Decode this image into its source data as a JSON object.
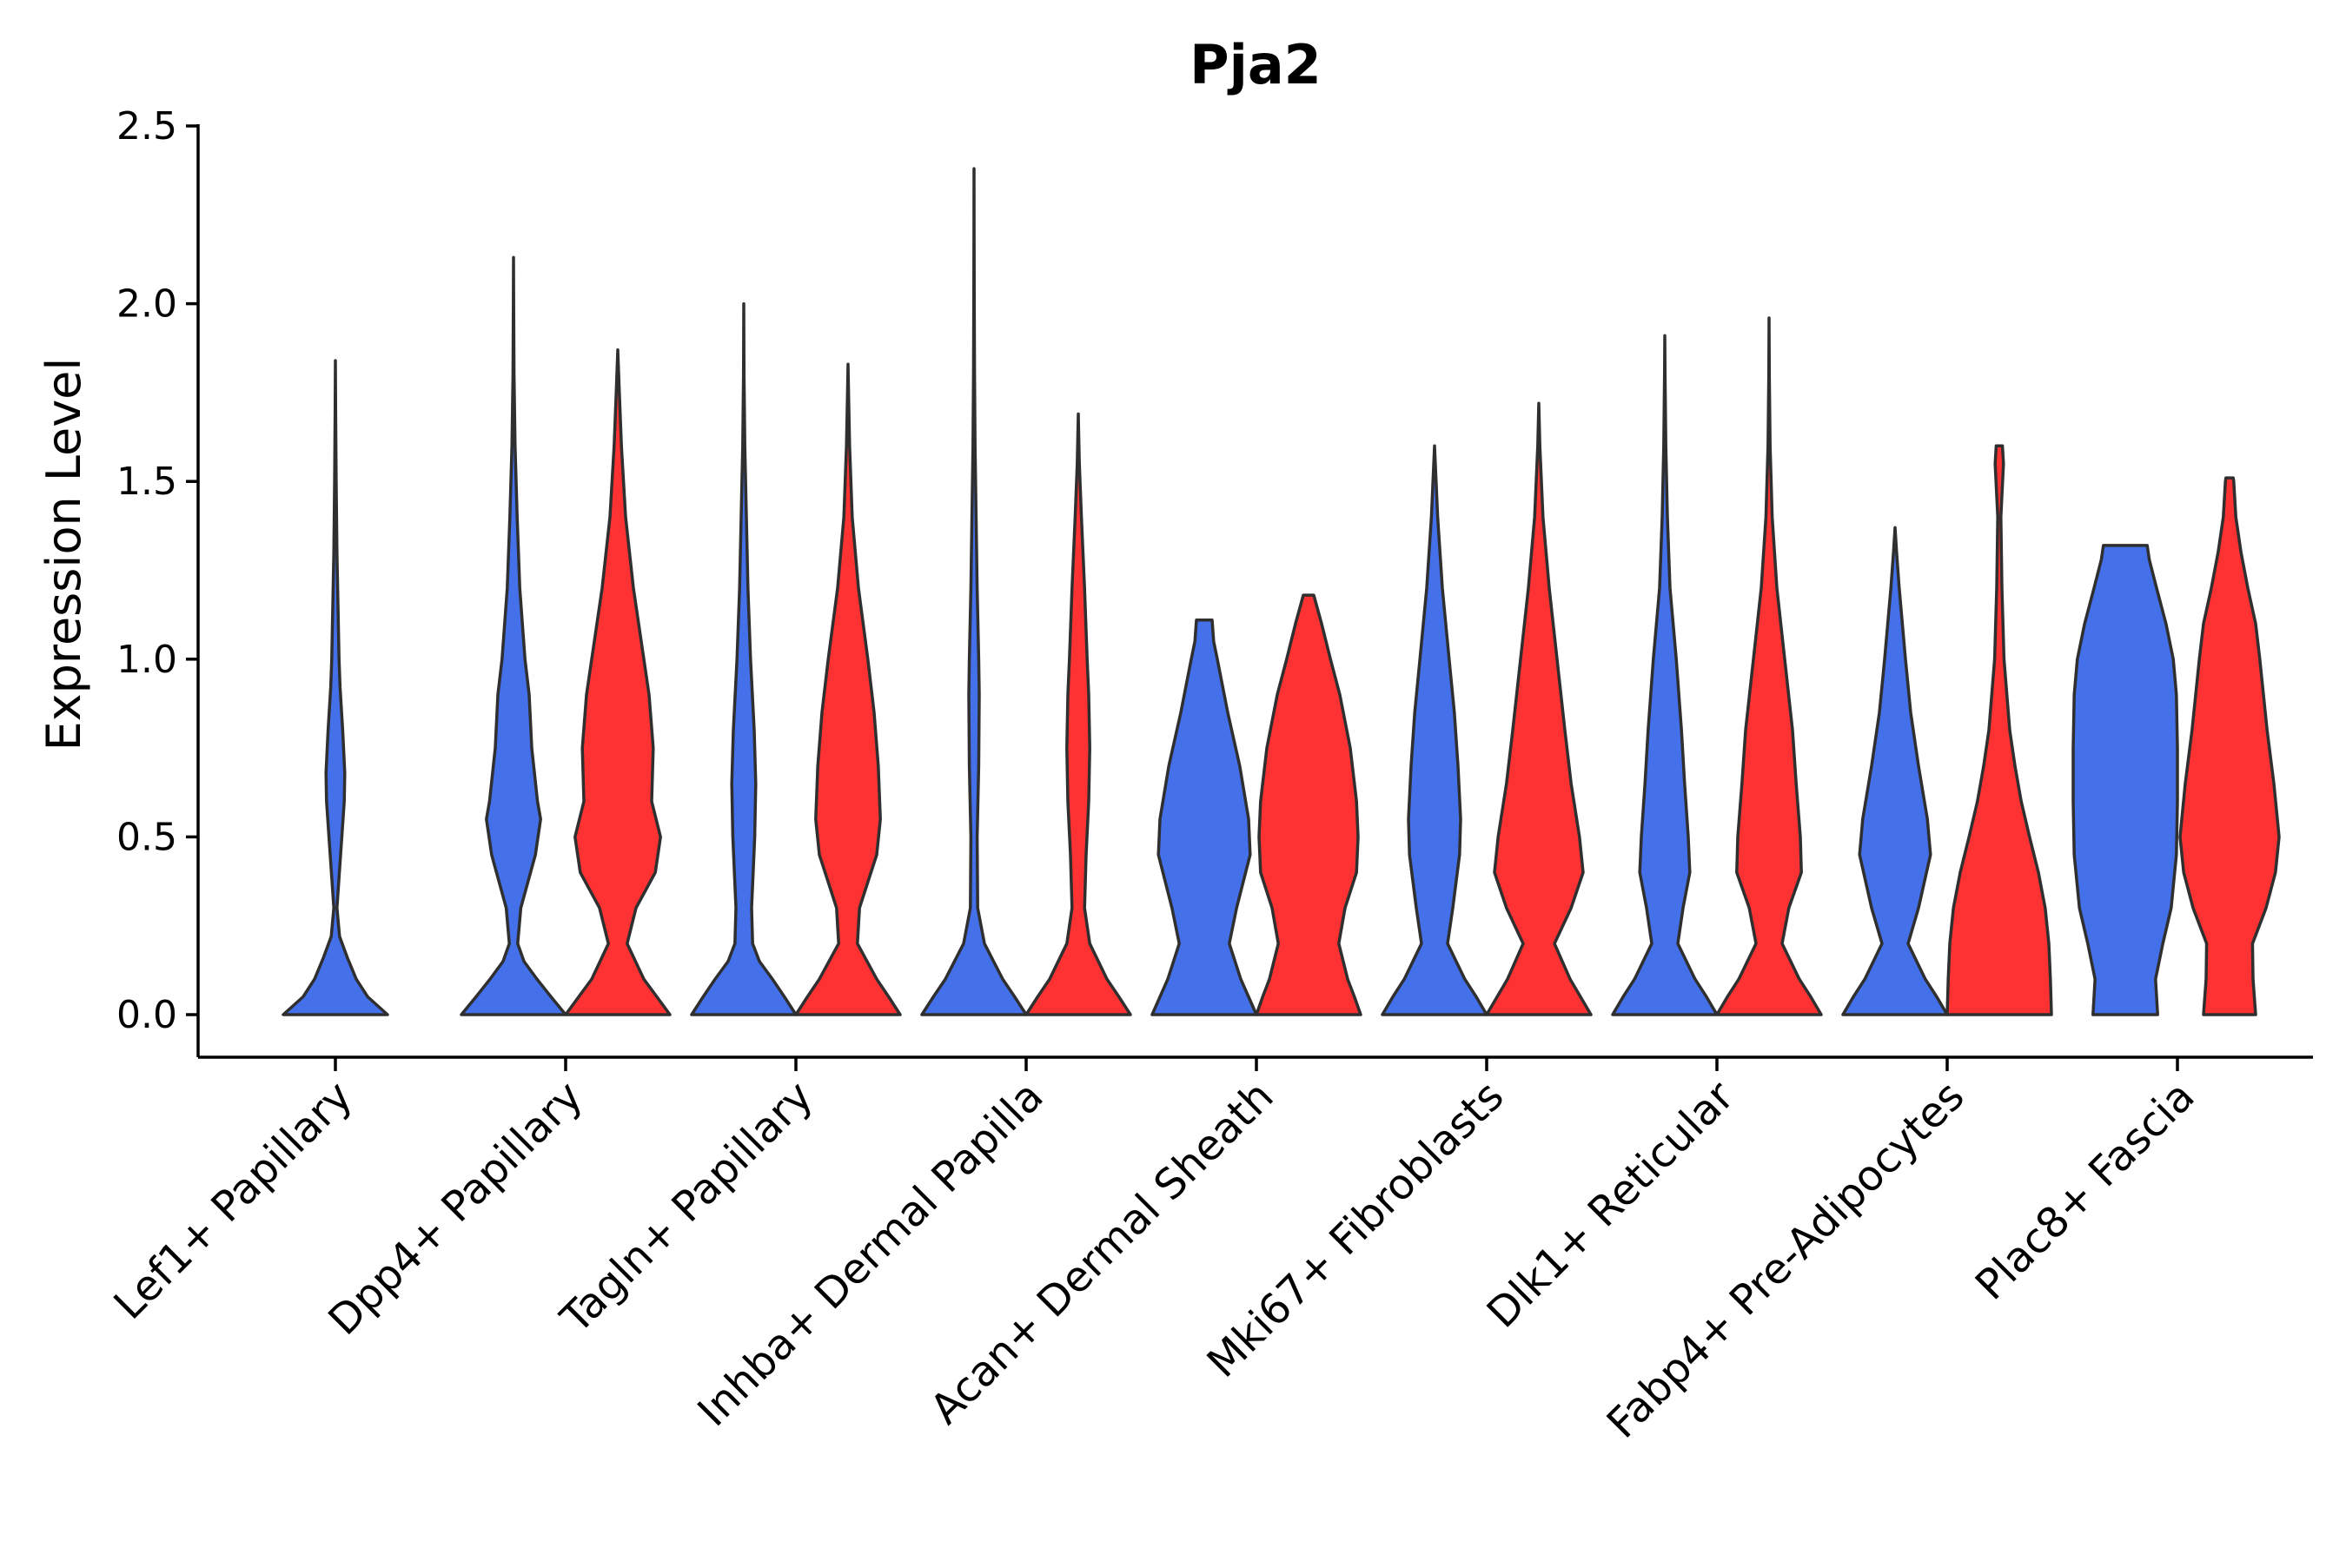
{
  "chart_data": {
    "type": "violin",
    "title": "Pja2",
    "xlabel": "",
    "ylabel": "Expression Level",
    "ylim": [
      -0.12,
      2.5
    ],
    "yticks": [
      "0.0",
      "0.5",
      "1.0",
      "1.5",
      "2.0",
      "2.5"
    ],
    "ytick_values": [
      0,
      0.5,
      1.0,
      1.5,
      2.0,
      2.5
    ],
    "grid": false,
    "legend": "none",
    "categories": [
      "Lef1+ Papillary",
      "Dpp4+ Papillary",
      "Tagln+ Papillary",
      "Inhba+ Dermal Papilla",
      "Acan+ Dermal Sheath",
      "Mki67+ Fibroblasts",
      "Dlk1+ Reticular",
      "Fabp4+ Pre-Adipocytes",
      "Plac8+ Fascia"
    ],
    "colors": {
      "group_a": "#4470ea",
      "group_b": "#fe3232"
    },
    "violins": [
      {
        "category": "Lef1+ Papillary",
        "group": "group_a",
        "max": 1.84,
        "profile": [
          [
            0,
            1.0
          ],
          [
            0.05,
            0.62
          ],
          [
            0.1,
            0.4
          ],
          [
            0.16,
            0.23
          ],
          [
            0.22,
            0.08
          ],
          [
            0.3,
            0.03
          ],
          [
            0.45,
            0.1
          ],
          [
            0.6,
            0.17
          ],
          [
            0.68,
            0.18
          ],
          [
            0.8,
            0.14
          ],
          [
            0.92,
            0.09
          ],
          [
            1.0,
            0.07
          ],
          [
            1.15,
            0.05
          ],
          [
            1.3,
            0.03
          ],
          [
            1.5,
            0.015
          ],
          [
            1.7,
            0.005
          ],
          [
            1.84,
            0
          ]
        ]
      },
      {
        "category": "Dpp4+ Papillary",
        "group": "group_a",
        "max": 2.13,
        "profile": [
          [
            0,
            1.0
          ],
          [
            0.05,
            0.72
          ],
          [
            0.1,
            0.45
          ],
          [
            0.15,
            0.2
          ],
          [
            0.2,
            0.08
          ],
          [
            0.3,
            0.14
          ],
          [
            0.45,
            0.42
          ],
          [
            0.55,
            0.52
          ],
          [
            0.6,
            0.46
          ],
          [
            0.75,
            0.35
          ],
          [
            0.9,
            0.3
          ],
          [
            1.0,
            0.22
          ],
          [
            1.2,
            0.12
          ],
          [
            1.4,
            0.07
          ],
          [
            1.6,
            0.03
          ],
          [
            1.8,
            0.01
          ],
          [
            2.0,
            0.003
          ],
          [
            2.13,
            0
          ]
        ]
      },
      {
        "category": "Dpp4+ Papillary",
        "group": "group_b",
        "max": 1.87,
        "profile": [
          [
            0,
            1.0
          ],
          [
            0.05,
            0.75
          ],
          [
            0.1,
            0.5
          ],
          [
            0.2,
            0.18
          ],
          [
            0.3,
            0.35
          ],
          [
            0.4,
            0.72
          ],
          [
            0.5,
            0.82
          ],
          [
            0.6,
            0.65
          ],
          [
            0.75,
            0.68
          ],
          [
            0.9,
            0.6
          ],
          [
            1.0,
            0.5
          ],
          [
            1.2,
            0.3
          ],
          [
            1.4,
            0.15
          ],
          [
            1.6,
            0.07
          ],
          [
            1.75,
            0.03
          ],
          [
            1.87,
            0
          ]
        ]
      },
      {
        "category": "Tagln+ Papillary",
        "group": "group_a",
        "max": 2.0,
        "profile": [
          [
            0,
            1.0
          ],
          [
            0.05,
            0.78
          ],
          [
            0.1,
            0.55
          ],
          [
            0.15,
            0.3
          ],
          [
            0.2,
            0.17
          ],
          [
            0.3,
            0.15
          ],
          [
            0.5,
            0.21
          ],
          [
            0.65,
            0.23
          ],
          [
            0.8,
            0.2
          ],
          [
            1.0,
            0.13
          ],
          [
            1.2,
            0.08
          ],
          [
            1.4,
            0.05
          ],
          [
            1.6,
            0.02
          ],
          [
            1.8,
            0.005
          ],
          [
            2.0,
            0
          ]
        ]
      },
      {
        "category": "Tagln+ Papillary",
        "group": "group_b",
        "max": 1.83,
        "profile": [
          [
            0,
            1.0
          ],
          [
            0.05,
            0.78
          ],
          [
            0.1,
            0.55
          ],
          [
            0.2,
            0.18
          ],
          [
            0.3,
            0.22
          ],
          [
            0.45,
            0.55
          ],
          [
            0.55,
            0.62
          ],
          [
            0.7,
            0.58
          ],
          [
            0.85,
            0.5
          ],
          [
            1.0,
            0.38
          ],
          [
            1.2,
            0.2
          ],
          [
            1.4,
            0.08
          ],
          [
            1.6,
            0.03
          ],
          [
            1.75,
            0.01
          ],
          [
            1.83,
            0
          ]
        ]
      },
      {
        "category": "Inhba+ Dermal Papilla",
        "group": "group_a",
        "max": 2.38,
        "profile": [
          [
            0,
            1.0
          ],
          [
            0.05,
            0.78
          ],
          [
            0.1,
            0.55
          ],
          [
            0.2,
            0.2
          ],
          [
            0.3,
            0.07
          ],
          [
            0.5,
            0.06
          ],
          [
            0.7,
            0.09
          ],
          [
            0.9,
            0.1
          ],
          [
            1.0,
            0.09
          ],
          [
            1.2,
            0.06
          ],
          [
            1.4,
            0.04
          ],
          [
            1.6,
            0.02
          ],
          [
            1.8,
            0.01
          ],
          [
            2.0,
            0.005
          ],
          [
            2.2,
            0.002
          ],
          [
            2.38,
            0
          ]
        ]
      },
      {
        "category": "Inhba+ Dermal Papilla",
        "group": "group_b",
        "max": 1.69,
        "profile": [
          [
            0,
            1.0
          ],
          [
            0.05,
            0.78
          ],
          [
            0.1,
            0.55
          ],
          [
            0.2,
            0.22
          ],
          [
            0.3,
            0.12
          ],
          [
            0.45,
            0.15
          ],
          [
            0.6,
            0.2
          ],
          [
            0.75,
            0.22
          ],
          [
            0.9,
            0.2
          ],
          [
            1.0,
            0.17
          ],
          [
            1.2,
            0.12
          ],
          [
            1.4,
            0.06
          ],
          [
            1.55,
            0.02
          ],
          [
            1.69,
            0
          ]
        ]
      },
      {
        "category": "Acan+ Dermal Sheath",
        "group": "group_a",
        "max": 1.11,
        "profile": [
          [
            0,
            1.0
          ],
          [
            0.05,
            0.85
          ],
          [
            0.1,
            0.7
          ],
          [
            0.2,
            0.48
          ],
          [
            0.3,
            0.62
          ],
          [
            0.45,
            0.88
          ],
          [
            0.55,
            0.85
          ],
          [
            0.7,
            0.68
          ],
          [
            0.85,
            0.45
          ],
          [
            1.0,
            0.25
          ],
          [
            1.05,
            0.18
          ],
          [
            1.11,
            0.15
          ]
        ]
      },
      {
        "category": "Acan+ Dermal Sheath",
        "group": "group_b",
        "max": 1.18,
        "profile": [
          [
            0,
            1.0
          ],
          [
            0.05,
            0.88
          ],
          [
            0.1,
            0.75
          ],
          [
            0.2,
            0.58
          ],
          [
            0.3,
            0.7
          ],
          [
            0.4,
            0.92
          ],
          [
            0.5,
            0.95
          ],
          [
            0.6,
            0.92
          ],
          [
            0.75,
            0.8
          ],
          [
            0.9,
            0.6
          ],
          [
            1.0,
            0.42
          ],
          [
            1.1,
            0.25
          ],
          [
            1.18,
            0.1
          ]
        ]
      },
      {
        "category": "Mki67+ Fibroblasts",
        "group": "group_a",
        "max": 1.6,
        "profile": [
          [
            0,
            1.0
          ],
          [
            0.05,
            0.8
          ],
          [
            0.1,
            0.58
          ],
          [
            0.2,
            0.25
          ],
          [
            0.3,
            0.35
          ],
          [
            0.45,
            0.48
          ],
          [
            0.55,
            0.5
          ],
          [
            0.7,
            0.45
          ],
          [
            0.85,
            0.38
          ],
          [
            1.0,
            0.28
          ],
          [
            1.2,
            0.15
          ],
          [
            1.4,
            0.06
          ],
          [
            1.5,
            0.03
          ],
          [
            1.6,
            0
          ]
        ]
      },
      {
        "category": "Mki67+ Fibroblasts",
        "group": "group_b",
        "max": 1.72,
        "profile": [
          [
            0,
            1.0
          ],
          [
            0.05,
            0.8
          ],
          [
            0.1,
            0.6
          ],
          [
            0.2,
            0.3
          ],
          [
            0.3,
            0.62
          ],
          [
            0.4,
            0.85
          ],
          [
            0.5,
            0.78
          ],
          [
            0.65,
            0.62
          ],
          [
            0.8,
            0.5
          ],
          [
            1.0,
            0.35
          ],
          [
            1.2,
            0.2
          ],
          [
            1.4,
            0.08
          ],
          [
            1.6,
            0.02
          ],
          [
            1.72,
            0
          ]
        ]
      },
      {
        "category": "Dlk1+ Reticular",
        "group": "group_a",
        "max": 1.91,
        "profile": [
          [
            0,
            1.0
          ],
          [
            0.05,
            0.8
          ],
          [
            0.1,
            0.58
          ],
          [
            0.2,
            0.25
          ],
          [
            0.3,
            0.35
          ],
          [
            0.4,
            0.48
          ],
          [
            0.5,
            0.45
          ],
          [
            0.65,
            0.38
          ],
          [
            0.8,
            0.32
          ],
          [
            1.0,
            0.22
          ],
          [
            1.2,
            0.1
          ],
          [
            1.4,
            0.05
          ],
          [
            1.6,
            0.02
          ],
          [
            1.8,
            0.005
          ],
          [
            1.91,
            0
          ]
        ]
      },
      {
        "category": "Dlk1+ Reticular",
        "group": "group_b",
        "max": 1.96,
        "profile": [
          [
            0,
            1.0
          ],
          [
            0.05,
            0.8
          ],
          [
            0.1,
            0.58
          ],
          [
            0.2,
            0.25
          ],
          [
            0.3,
            0.38
          ],
          [
            0.4,
            0.62
          ],
          [
            0.5,
            0.6
          ],
          [
            0.65,
            0.52
          ],
          [
            0.8,
            0.45
          ],
          [
            1.0,
            0.3
          ],
          [
            1.2,
            0.15
          ],
          [
            1.4,
            0.06
          ],
          [
            1.6,
            0.02
          ],
          [
            1.8,
            0.005
          ],
          [
            1.96,
            0
          ]
        ]
      },
      {
        "category": "Fabp4+ Pre-Adipocytes",
        "group": "group_a",
        "max": 1.37,
        "profile": [
          [
            0,
            1.0
          ],
          [
            0.05,
            0.8
          ],
          [
            0.1,
            0.58
          ],
          [
            0.2,
            0.25
          ],
          [
            0.3,
            0.45
          ],
          [
            0.45,
            0.68
          ],
          [
            0.55,
            0.62
          ],
          [
            0.7,
            0.45
          ],
          [
            0.85,
            0.3
          ],
          [
            1.0,
            0.2
          ],
          [
            1.2,
            0.08
          ],
          [
            1.3,
            0.03
          ],
          [
            1.37,
            0
          ]
        ]
      },
      {
        "category": "Fabp4+ Pre-Adipocytes",
        "group": "group_b",
        "max": 1.6,
        "profile": [
          [
            0,
            1.0
          ],
          [
            0.1,
            0.98
          ],
          [
            0.2,
            0.95
          ],
          [
            0.3,
            0.88
          ],
          [
            0.4,
            0.75
          ],
          [
            0.5,
            0.58
          ],
          [
            0.6,
            0.42
          ],
          [
            0.7,
            0.3
          ],
          [
            0.8,
            0.2
          ],
          [
            1.0,
            0.09
          ],
          [
            1.2,
            0.05
          ],
          [
            1.4,
            0.03
          ],
          [
            1.55,
            0.08
          ],
          [
            1.6,
            0.06
          ]
        ]
      },
      {
        "category": "Plac8+ Fascia",
        "group": "group_a",
        "max": 1.32,
        "profile": [
          [
            0,
            0.62
          ],
          [
            0.1,
            0.58
          ],
          [
            0.2,
            0.72
          ],
          [
            0.3,
            0.88
          ],
          [
            0.45,
            0.98
          ],
          [
            0.6,
            1.0
          ],
          [
            0.75,
            1.0
          ],
          [
            0.9,
            0.98
          ],
          [
            1.0,
            0.92
          ],
          [
            1.1,
            0.78
          ],
          [
            1.2,
            0.6
          ],
          [
            1.28,
            0.46
          ],
          [
            1.32,
            0.42
          ]
        ]
      },
      {
        "category": "Plac8+ Fascia",
        "group": "group_b",
        "max": 1.51,
        "profile": [
          [
            0,
            0.5
          ],
          [
            0.1,
            0.45
          ],
          [
            0.2,
            0.44
          ],
          [
            0.3,
            0.7
          ],
          [
            0.4,
            0.88
          ],
          [
            0.5,
            0.95
          ],
          [
            0.65,
            0.85
          ],
          [
            0.8,
            0.72
          ],
          [
            1.0,
            0.58
          ],
          [
            1.1,
            0.5
          ],
          [
            1.2,
            0.35
          ],
          [
            1.3,
            0.22
          ],
          [
            1.4,
            0.12
          ],
          [
            1.5,
            0.08
          ],
          [
            1.51,
            0.07
          ]
        ]
      }
    ]
  }
}
